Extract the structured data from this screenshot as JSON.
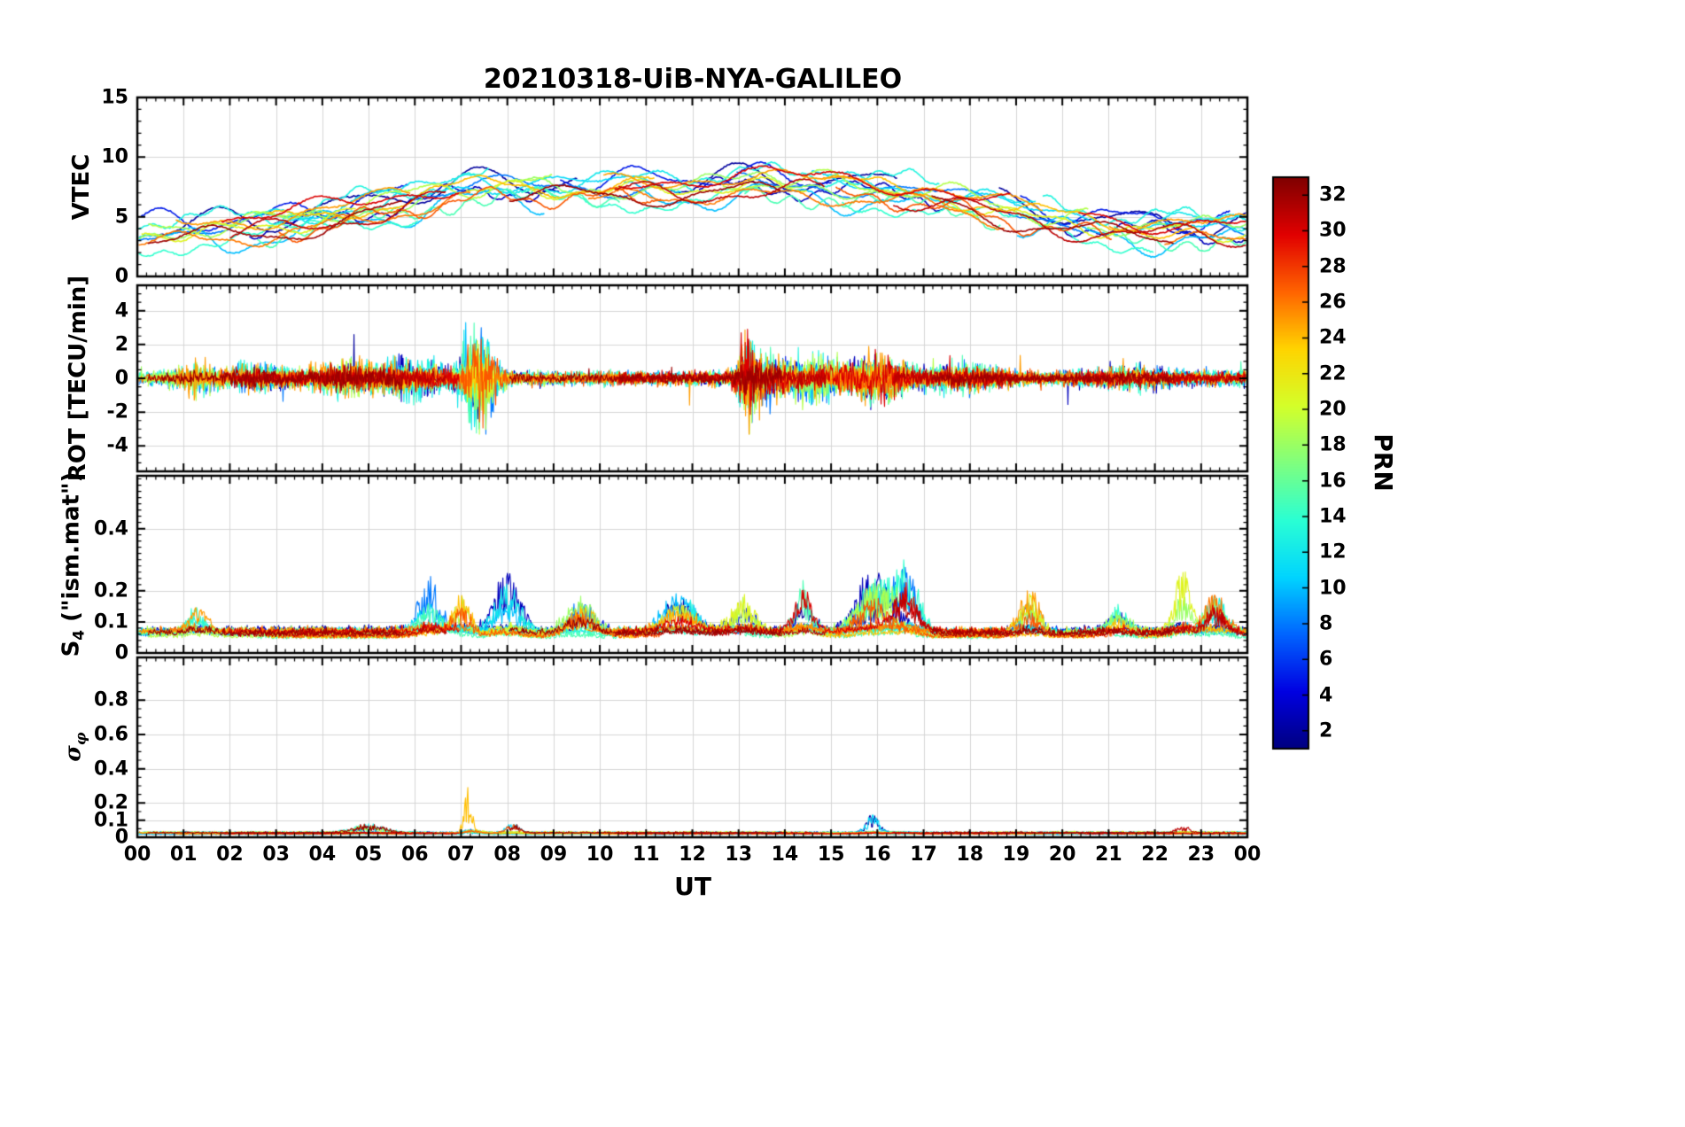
{
  "title": "20210318-UiB-NYA-GALILEO",
  "xlabel": "UT",
  "x_tick_labels": [
    "00",
    "01",
    "02",
    "03",
    "04",
    "05",
    "06",
    "07",
    "08",
    "09",
    "10",
    "11",
    "12",
    "13",
    "14",
    "15",
    "16",
    "17",
    "18",
    "19",
    "20",
    "21",
    "22",
    "23",
    "00"
  ],
  "x_range_hours": [
    0,
    24
  ],
  "colorbar": {
    "label": "PRN",
    "tick_values": [
      2,
      4,
      6,
      8,
      10,
      12,
      14,
      16,
      18,
      20,
      22,
      24,
      26,
      28,
      30,
      32
    ],
    "value_range": [
      1,
      33
    ],
    "colormap": "jet",
    "stops": [
      "#00007F",
      "#0000E1",
      "#0064FF",
      "#00D4FF",
      "#2AFFD4",
      "#7FFF7F",
      "#D4FF2A",
      "#FFD400",
      "#FF6400",
      "#E10000",
      "#7F0000"
    ]
  },
  "chart_data": [
    {
      "type": "line",
      "panel": "VTEC",
      "ylabel": "VTEC",
      "units": "TECU",
      "ylim": [
        0,
        15
      ],
      "ytick_values": [
        0,
        5,
        10,
        15
      ],
      "ytick_labels": [
        "0",
        "5",
        "10",
        "15"
      ],
      "minor_step": 1,
      "grid": true,
      "series_prns": [
        2,
        3,
        5,
        8,
        10,
        11,
        12,
        13,
        14,
        15,
        18,
        19,
        21,
        24,
        25,
        26,
        27,
        30,
        31,
        32
      ],
      "hourly_mean_trend": [
        3.8,
        3.9,
        4.0,
        4.3,
        5.0,
        5.8,
        6.5,
        7.2,
        7.5,
        7.4,
        7.4,
        7.5,
        7.6,
        7.7,
        7.6,
        7.5,
        7.3,
        7.0,
        6.2,
        5.3,
        4.7,
        4.2,
        4.0,
        3.9,
        3.8
      ],
      "satellite_spread": 2.4,
      "value_range_observed": [
        1.8,
        10.2
      ]
    },
    {
      "type": "line",
      "panel": "ROT",
      "ylabel": "ROT [TECU/min]",
      "ylim": [
        -5.5,
        5.5
      ],
      "ytick_values": [
        -4,
        -2,
        0,
        2,
        4
      ],
      "ytick_labels": [
        "-4",
        "-2",
        "0",
        "2",
        "4"
      ],
      "minor_step": 0.5,
      "grid": true,
      "baseline": 0,
      "typical_noise": 0.3,
      "spike_events": [
        {
          "t": 1.3,
          "amp": 0.5,
          "w": 0.5
        },
        {
          "t": 2.5,
          "amp": 0.4,
          "w": 0.6
        },
        {
          "t": 4.5,
          "amp": 0.6,
          "w": 0.8
        },
        {
          "t": 6.0,
          "amp": 0.7,
          "w": 0.8
        },
        {
          "t": 7.2,
          "amp": 2.0,
          "w": 0.25
        },
        {
          "t": 7.5,
          "amp": 1.6,
          "w": 0.3
        },
        {
          "t": 13.2,
          "amp": 2.0,
          "w": 0.2
        },
        {
          "t": 13.6,
          "amp": 0.9,
          "w": 0.5
        },
        {
          "t": 14.6,
          "amp": 1.0,
          "w": 0.6
        },
        {
          "t": 16.0,
          "amp": 0.9,
          "w": 0.7
        },
        {
          "t": 18.0,
          "amp": 0.5,
          "w": 0.8
        },
        {
          "t": 21.5,
          "amp": 0.4,
          "w": 0.8
        }
      ],
      "value_range_observed": [
        -3.0,
        3.0
      ]
    },
    {
      "type": "line",
      "panel": "S4",
      "ylabel_main": "S",
      "ylabel_sub": "4",
      "ylabel_rest": " (\"ism.mat\")",
      "ylim": [
        0,
        0.57
      ],
      "ytick_values": [
        0,
        0.1,
        0.2,
        0.4
      ],
      "ytick_labels": [
        "0",
        "0.1",
        "0.2",
        "0.4"
      ],
      "minor_step": 0.02,
      "grid": true,
      "baseline": 0.06,
      "spike_events": [
        {
          "t": 1.3,
          "amp": 0.1,
          "w": 0.3
        },
        {
          "t": 6.3,
          "amp": 0.17,
          "w": 0.35
        },
        {
          "t": 7.0,
          "amp": 0.12,
          "w": 0.3
        },
        {
          "t": 8.0,
          "amp": 0.14,
          "w": 0.4
        },
        {
          "t": 9.6,
          "amp": 0.08,
          "w": 0.4
        },
        {
          "t": 11.7,
          "amp": 0.1,
          "w": 0.5
        },
        {
          "t": 13.1,
          "amp": 0.12,
          "w": 0.4
        },
        {
          "t": 14.4,
          "amp": 0.17,
          "w": 0.3
        },
        {
          "t": 15.9,
          "amp": 0.14,
          "w": 0.5
        },
        {
          "t": 16.6,
          "amp": 0.18,
          "w": 0.4
        },
        {
          "t": 19.3,
          "amp": 0.1,
          "w": 0.3
        },
        {
          "t": 21.2,
          "amp": 0.07,
          "w": 0.3
        },
        {
          "t": 22.6,
          "amp": 0.18,
          "w": 0.25
        },
        {
          "t": 23.3,
          "amp": 0.1,
          "w": 0.3
        }
      ],
      "value_range_observed": [
        0.04,
        0.3
      ]
    },
    {
      "type": "line",
      "panel": "sigma_phi",
      "ylabel_main": "σ",
      "ylabel_sub": "φ",
      "ylim": [
        0,
        1.05
      ],
      "ytick_values": [
        0,
        0.1,
        0.2,
        0.4,
        0.6,
        0.8
      ],
      "ytick_labels": [
        "0",
        "0.1",
        "0.2",
        "0.4",
        "0.6",
        "0.8"
      ],
      "minor_step": 0.05,
      "grid": true,
      "baseline": 0.02,
      "spike_events": [
        {
          "t": 5.0,
          "amp": 0.05,
          "w": 0.5
        },
        {
          "t": 7.15,
          "amp": 0.27,
          "w": 0.12
        },
        {
          "t": 7.35,
          "amp": 0.17,
          "w": 0.15
        },
        {
          "t": 8.1,
          "amp": 0.06,
          "w": 0.2
        },
        {
          "t": 15.9,
          "amp": 0.11,
          "w": 0.2
        },
        {
          "t": 16.5,
          "amp": 0.07,
          "w": 0.3
        },
        {
          "t": 22.6,
          "amp": 0.05,
          "w": 0.2
        }
      ],
      "value_range_observed": [
        0.01,
        0.25
      ]
    }
  ]
}
